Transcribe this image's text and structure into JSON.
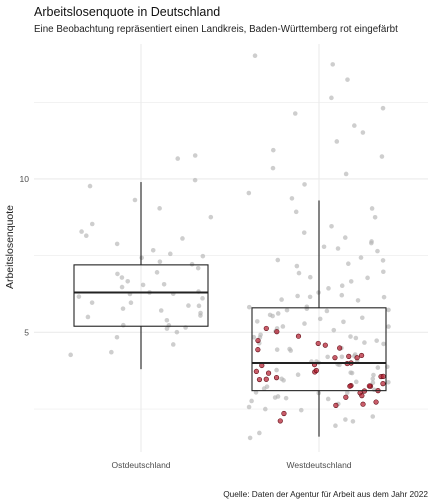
{
  "chart_data": {
    "type": "boxplot",
    "title": "Arbeitslosenquote in Deutschland",
    "subtitle": "Eine Beobachtung repräsentiert einen Landkreis, Baden-Württemberg rot eingefärbt",
    "xlabel": "",
    "ylabel": "Arbeitslosenquote",
    "caption": "Quelle: Daten der Agentur für Arbeit aus dem Jahr 2022",
    "ylim": [
      1.1,
      14.4
    ],
    "yticks": [
      5,
      10
    ],
    "grid": true,
    "legend": "none",
    "colors": {
      "point": "#b3b3b3",
      "bw_point": "#b2182b",
      "box": "#222222",
      "grid": "#ebebeb"
    },
    "categories": [
      "Ostdeutschland",
      "Westdeutschland"
    ],
    "boxes": [
      {
        "category": "Ostdeutschland",
        "whisker_low": 3.8,
        "q1": 5.2,
        "median": 6.3,
        "q3": 7.2,
        "whisker_high": 9.9
      },
      {
        "category": "Westdeutschland",
        "whisker_low": 1.6,
        "q1": 3.1,
        "median": 4.0,
        "q3": 5.8,
        "whisker_high": 9.3
      }
    ],
    "points": [
      {
        "category": "Ostdeutschland",
        "group": "other",
        "values": [
          4.2,
          4.4,
          4.6,
          4.8,
          5.0,
          5.1,
          5.2,
          5.2,
          5.3,
          5.4,
          5.5,
          5.5,
          5.6,
          5.7,
          5.8,
          5.8,
          5.9,
          6.0,
          6.0,
          6.1,
          6.2,
          6.2,
          6.3,
          6.3,
          6.4,
          6.5,
          6.5,
          6.6,
          6.7,
          6.8,
          6.9,
          7.0,
          7.1,
          7.2,
          7.3,
          7.4,
          7.5,
          7.6,
          7.7,
          7.9,
          8.0,
          8.1,
          8.3,
          8.6,
          8.8,
          9.1,
          9.3,
          9.7,
          9.9,
          10.7,
          10.7
        ]
      },
      {
        "category": "Westdeutschland",
        "group": "other",
        "values": [
          1.6,
          1.8,
          2.0,
          2.1,
          2.2,
          2.3,
          2.4,
          2.5,
          2.5,
          2.6,
          2.7,
          2.8,
          2.8,
          2.9,
          2.9,
          3.0,
          3.0,
          3.1,
          3.1,
          3.2,
          3.2,
          3.3,
          3.3,
          3.4,
          3.4,
          3.5,
          3.5,
          3.6,
          3.6,
          3.7,
          3.7,
          3.8,
          3.8,
          3.9,
          3.9,
          4.0,
          4.0,
          4.0,
          4.1,
          4.1,
          4.2,
          4.2,
          4.3,
          4.3,
          4.4,
          4.4,
          4.5,
          4.5,
          4.6,
          4.6,
          4.7,
          4.7,
          4.8,
          4.8,
          4.9,
          4.9,
          5.0,
          5.0,
          5.1,
          5.1,
          5.2,
          5.2,
          5.3,
          5.3,
          5.4,
          5.4,
          5.5,
          5.5,
          5.6,
          5.6,
          5.7,
          5.7,
          5.8,
          5.8,
          5.9,
          5.9,
          6.0,
          6.0,
          6.1,
          6.1,
          6.2,
          6.2,
          6.3,
          6.4,
          6.5,
          6.6,
          6.7,
          6.8,
          6.9,
          7.0,
          7.1,
          7.2,
          7.3,
          7.4,
          7.5,
          7.6,
          7.7,
          7.8,
          7.9,
          8.0,
          8.1,
          8.3,
          8.5,
          8.7,
          8.9,
          9.1,
          9.3,
          9.6,
          9.9,
          10.1,
          10.4,
          10.7,
          11.0,
          11.3,
          11.5,
          11.8,
          12.1,
          12.3,
          12.6,
          13.2,
          13.8,
          14.0
        ]
      },
      {
        "category": "Westdeutschland",
        "group": "Baden-Württemberg",
        "values": [
          2.1,
          2.4,
          2.6,
          2.7,
          2.8,
          2.9,
          3.0,
          3.0,
          3.1,
          3.1,
          3.2,
          3.2,
          3.3,
          3.3,
          3.4,
          3.4,
          3.5,
          3.5,
          3.6,
          3.6,
          3.7,
          3.7,
          3.8,
          3.8,
          3.9,
          3.9,
          4.0,
          4.0,
          4.1,
          4.1,
          4.2,
          4.3,
          4.4,
          4.5,
          4.6,
          4.7,
          4.8,
          4.9,
          5.0,
          5.2
        ]
      }
    ]
  }
}
